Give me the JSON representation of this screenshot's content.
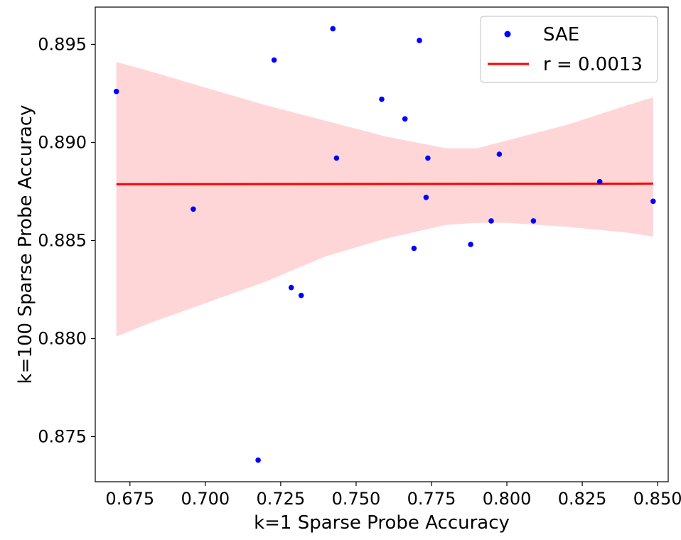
{
  "chart_data": {
    "type": "scatter",
    "xlabel": "k=1 Sparse Probe Accuracy",
    "ylabel": "k=100 Sparse Probe Accuracy",
    "xlim": [
      0.6635,
      0.8535
    ],
    "ylim": [
      0.8727,
      0.8969
    ],
    "x_ticks": [
      0.675,
      0.7,
      0.725,
      0.75,
      0.775,
      0.8,
      0.825,
      0.85
    ],
    "y_ticks": [
      0.875,
      0.88,
      0.885,
      0.89,
      0.895
    ],
    "x_tick_labels": [
      "0.675",
      "0.700",
      "0.725",
      "0.750",
      "0.775",
      "0.800",
      "0.825",
      "0.850"
    ],
    "y_tick_labels": [
      "0.875",
      "0.880",
      "0.885",
      "0.890",
      "0.895"
    ],
    "grid": false,
    "legend_position": "top-right",
    "series": [
      {
        "name": "SAE",
        "kind": "scatter",
        "color": "#0000ff",
        "points": [
          [
            0.6705,
            0.8926
          ],
          [
            0.696,
            0.8866
          ],
          [
            0.7175,
            0.8738
          ],
          [
            0.7228,
            0.8942
          ],
          [
            0.7285,
            0.8826
          ],
          [
            0.7318,
            0.8822
          ],
          [
            0.7423,
            0.8958
          ],
          [
            0.7435,
            0.8892
          ],
          [
            0.7585,
            0.8922
          ],
          [
            0.7662,
            0.8912
          ],
          [
            0.7692,
            0.8846
          ],
          [
            0.771,
            0.8952
          ],
          [
            0.7732,
            0.8872
          ],
          [
            0.7738,
            0.8892
          ],
          [
            0.788,
            0.8848
          ],
          [
            0.7948,
            0.886
          ],
          [
            0.7975,
            0.8894
          ],
          [
            0.8088,
            0.886
          ],
          [
            0.8308,
            0.888
          ],
          [
            0.8485,
            0.887
          ]
        ]
      },
      {
        "name": "r = 0.0013",
        "kind": "line",
        "color": "#ff0000",
        "x": [
          0.6705,
          0.8485
        ],
        "y": [
          0.88787,
          0.8879
        ]
      }
    ],
    "confidence_band": {
      "color": "#ffd6d8",
      "x": [
        0.6705,
        0.68,
        0.7,
        0.72,
        0.74,
        0.76,
        0.78,
        0.79,
        0.8,
        0.82,
        0.84,
        0.8485
      ],
      "upper": [
        0.8941,
        0.8937,
        0.8928,
        0.8919,
        0.8911,
        0.8903,
        0.8897,
        0.8897,
        0.8901,
        0.8909,
        0.8919,
        0.8923
      ],
      "lower": [
        0.8801,
        0.8807,
        0.8818,
        0.8829,
        0.8842,
        0.8851,
        0.8858,
        0.8859,
        0.8859,
        0.8857,
        0.8854,
        0.8852
      ]
    }
  }
}
